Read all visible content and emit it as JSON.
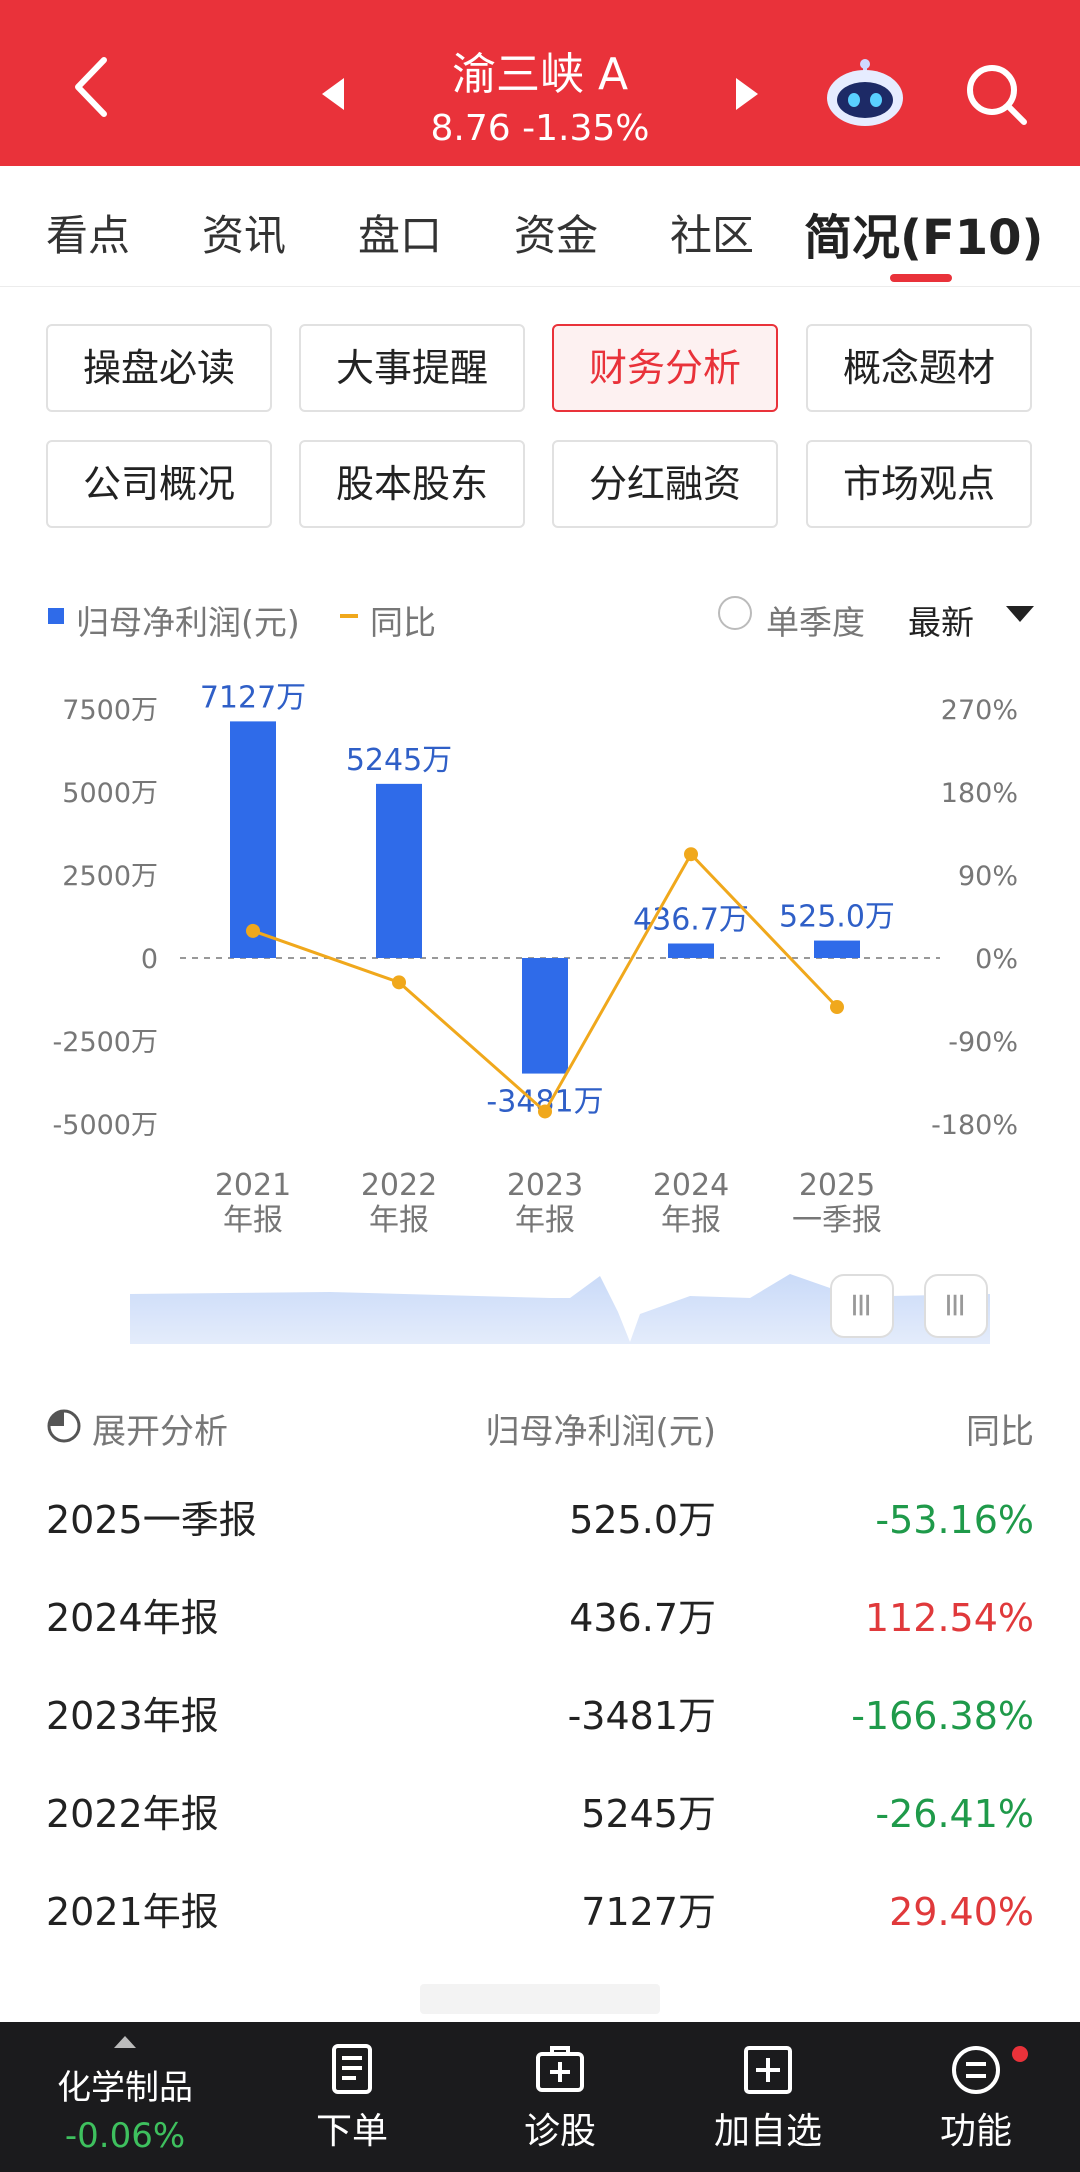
{
  "header": {
    "stock_name": "渝三峡 A",
    "quote": "8.76  -1.35%"
  },
  "tabs": [
    {
      "label": "看点"
    },
    {
      "label": "资讯"
    },
    {
      "label": "盘口"
    },
    {
      "label": "资金"
    },
    {
      "label": "社区"
    },
    {
      "label": "简况(F10)",
      "active": true
    }
  ],
  "menu_buttons": [
    {
      "label": "操盘必读"
    },
    {
      "label": "大事提醒"
    },
    {
      "label": "财务分析",
      "active": true
    },
    {
      "label": "概念题材"
    },
    {
      "label": "公司概况"
    },
    {
      "label": "股本股东"
    },
    {
      "label": "分红融资"
    },
    {
      "label": "市场观点"
    }
  ],
  "legend": {
    "series1": "归母净利润(元)",
    "series2": "同比",
    "quarter_toggle": "单季度",
    "sort_label": "最新"
  },
  "colors": {
    "brand_red": "#e9323a",
    "bar_blue": "#2f6be9",
    "line_orange": "#f0a81c",
    "down_green": "#1f9a4a",
    "up_red": "#e0393b"
  },
  "chart_data": {
    "type": "bar",
    "categories": [
      [
        "2021",
        "年报"
      ],
      [
        "2022",
        "年报"
      ],
      [
        "2023",
        "年报"
      ],
      [
        "2024",
        "年报"
      ],
      [
        "2025",
        "一季报"
      ]
    ],
    "series": [
      {
        "name": "归母净利润(元)",
        "type": "bar",
        "values": [
          7127,
          5245,
          -3481,
          436.7,
          525.0
        ],
        "axis": "left",
        "labels": [
          "7127万",
          "5245万",
          "-3481万",
          "436.7万",
          "525.0万"
        ]
      },
      {
        "name": "同比",
        "type": "line",
        "values": [
          29.4,
          -26.41,
          -166.38,
          112.54,
          -53.16
        ],
        "axis": "right"
      }
    ],
    "left_axis": {
      "ticks": [
        7500,
        5000,
        2500,
        0,
        -2500,
        -5000
      ],
      "tick_labels": [
        "7500万",
        "5000万",
        "2500万",
        "0",
        "-2500万",
        "-5000万"
      ],
      "ylim": [
        -5000,
        7500
      ]
    },
    "right_axis": {
      "ticks": [
        270,
        180,
        90,
        0,
        -90,
        -180
      ],
      "tick_labels": [
        "270%",
        "180%",
        "90%",
        "0%",
        "-90%",
        "-180%"
      ],
      "ylim": [
        -180,
        270
      ]
    }
  },
  "table": {
    "headers": {
      "period": "展开分析",
      "value": "归母净利润(元)",
      "yoy": "同比"
    },
    "rows": [
      {
        "period": "2025一季报",
        "value": "525.0万",
        "yoy": "-53.16%",
        "dir": "down"
      },
      {
        "period": "2024年报",
        "value": "436.7万",
        "yoy": "112.54%",
        "dir": "up"
      },
      {
        "period": "2023年报",
        "value": "-3481万",
        "yoy": "-166.38%",
        "dir": "down"
      },
      {
        "period": "2022年报",
        "value": "5245万",
        "yoy": "-26.41%",
        "dir": "down"
      },
      {
        "period": "2021年报",
        "value": "7127万",
        "yoy": "29.40%",
        "dir": "up"
      }
    ]
  },
  "bottom_bar": {
    "sector_name": "化学制品",
    "sector_change": "-0.06%",
    "items": [
      {
        "label": "下单",
        "icon": "order-icon"
      },
      {
        "label": "诊股",
        "icon": "diagnose-icon"
      },
      {
        "label": "加自选",
        "icon": "add-watchlist-icon"
      },
      {
        "label": "功能",
        "icon": "menu-icon"
      }
    ]
  }
}
